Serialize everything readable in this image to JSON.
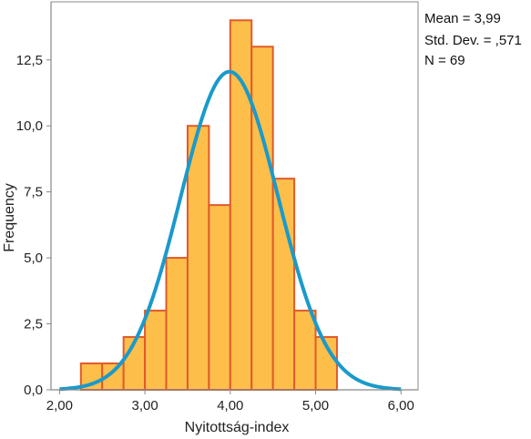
{
  "chart_data": {
    "type": "bar",
    "subtype": "histogram with normal curve",
    "title": "",
    "xlabel": "Nyitottság-index",
    "ylabel": "Frequency",
    "xlim": [
      1.9,
      6.2
    ],
    "ylim": [
      0,
      14.7
    ],
    "x_ticks": [
      2,
      3,
      4,
      5,
      6
    ],
    "x_tick_labels": [
      "2,00",
      "3,00",
      "4,00",
      "5,00",
      "6,00"
    ],
    "y_ticks": [
      0,
      2.5,
      5,
      7.5,
      10,
      12.5
    ],
    "y_tick_labels": [
      "0,0",
      "2,5",
      "5,0",
      "7,5",
      "10,0",
      "12,5"
    ],
    "bin_width": 0.25,
    "bins": [
      {
        "start": 2.25,
        "end": 2.5,
        "count": 1
      },
      {
        "start": 2.5,
        "end": 2.75,
        "count": 1
      },
      {
        "start": 2.75,
        "end": 3.0,
        "count": 2
      },
      {
        "start": 3.0,
        "end": 3.25,
        "count": 3
      },
      {
        "start": 3.25,
        "end": 3.5,
        "count": 5
      },
      {
        "start": 3.5,
        "end": 3.75,
        "count": 10
      },
      {
        "start": 3.75,
        "end": 4.0,
        "count": 7
      },
      {
        "start": 4.0,
        "end": 4.25,
        "count": 14
      },
      {
        "start": 4.25,
        "end": 4.5,
        "count": 13
      },
      {
        "start": 4.5,
        "end": 4.75,
        "count": 8
      },
      {
        "start": 4.75,
        "end": 5.0,
        "count": 3
      },
      {
        "start": 5.0,
        "end": 5.25,
        "count": 2
      }
    ],
    "normal_curve": {
      "mean": 3.99,
      "std_dev": 0.571,
      "n": 69,
      "x_range": [
        2.0,
        6.0
      ]
    },
    "grid": false,
    "stats_box": {
      "lines": [
        "Mean = 3,99",
        "Std. Dev. = ,571",
        "N = 69"
      ],
      "placement": "top-right"
    },
    "colors": {
      "bar_fill": "#FDBF4A",
      "bar_edge": "#E05A2B",
      "curve": "#1A9ACB",
      "axis": "#888888",
      "text": "#222222"
    }
  }
}
